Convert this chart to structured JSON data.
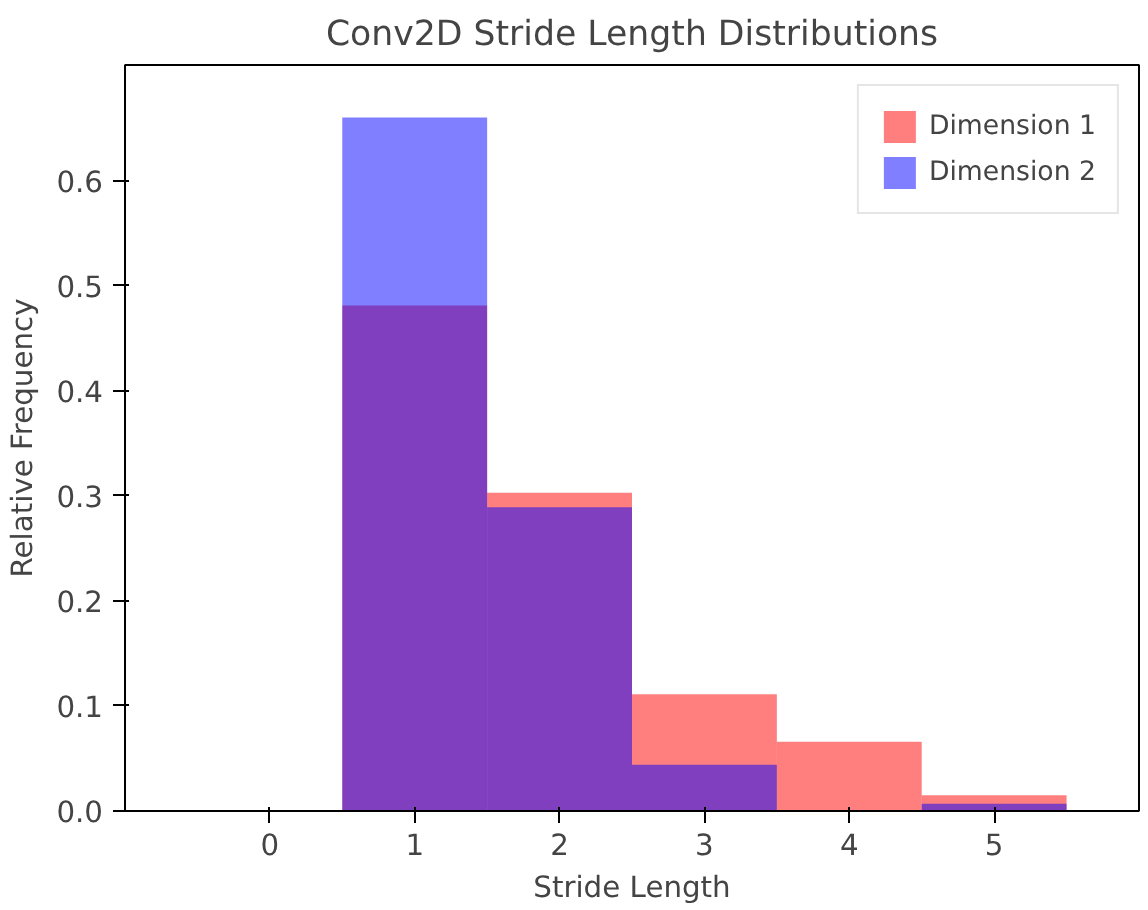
{
  "chart_data": {
    "type": "histogram",
    "title": "Conv2D Stride Length Distributions",
    "xlabel": "Stride Length",
    "ylabel": "Relative Frequency",
    "bins": [
      0.5,
      1.5,
      2.5,
      3.5,
      4.5,
      5.5
    ],
    "series": [
      {
        "name": "Dimension 1",
        "color": "#ff0000",
        "values": [
          0.481,
          0.303,
          0.111,
          0.066,
          0.015
        ]
      },
      {
        "name": "Dimension 2",
        "color": "#0000ff",
        "values": [
          0.66,
          0.289,
          0.044,
          0,
          0.007
        ]
      }
    ],
    "xlim": [
      -1,
      6
    ],
    "xticks": [
      0,
      1,
      2,
      3,
      4,
      5
    ],
    "ylim": [
      0,
      0.71
    ],
    "yticks": [
      {
        "value": 0,
        "label": "0.0"
      },
      0.1,
      0.2,
      0.3,
      0.4,
      0.5,
      0.6
    ],
    "legend": "top right",
    "grid": false
  }
}
